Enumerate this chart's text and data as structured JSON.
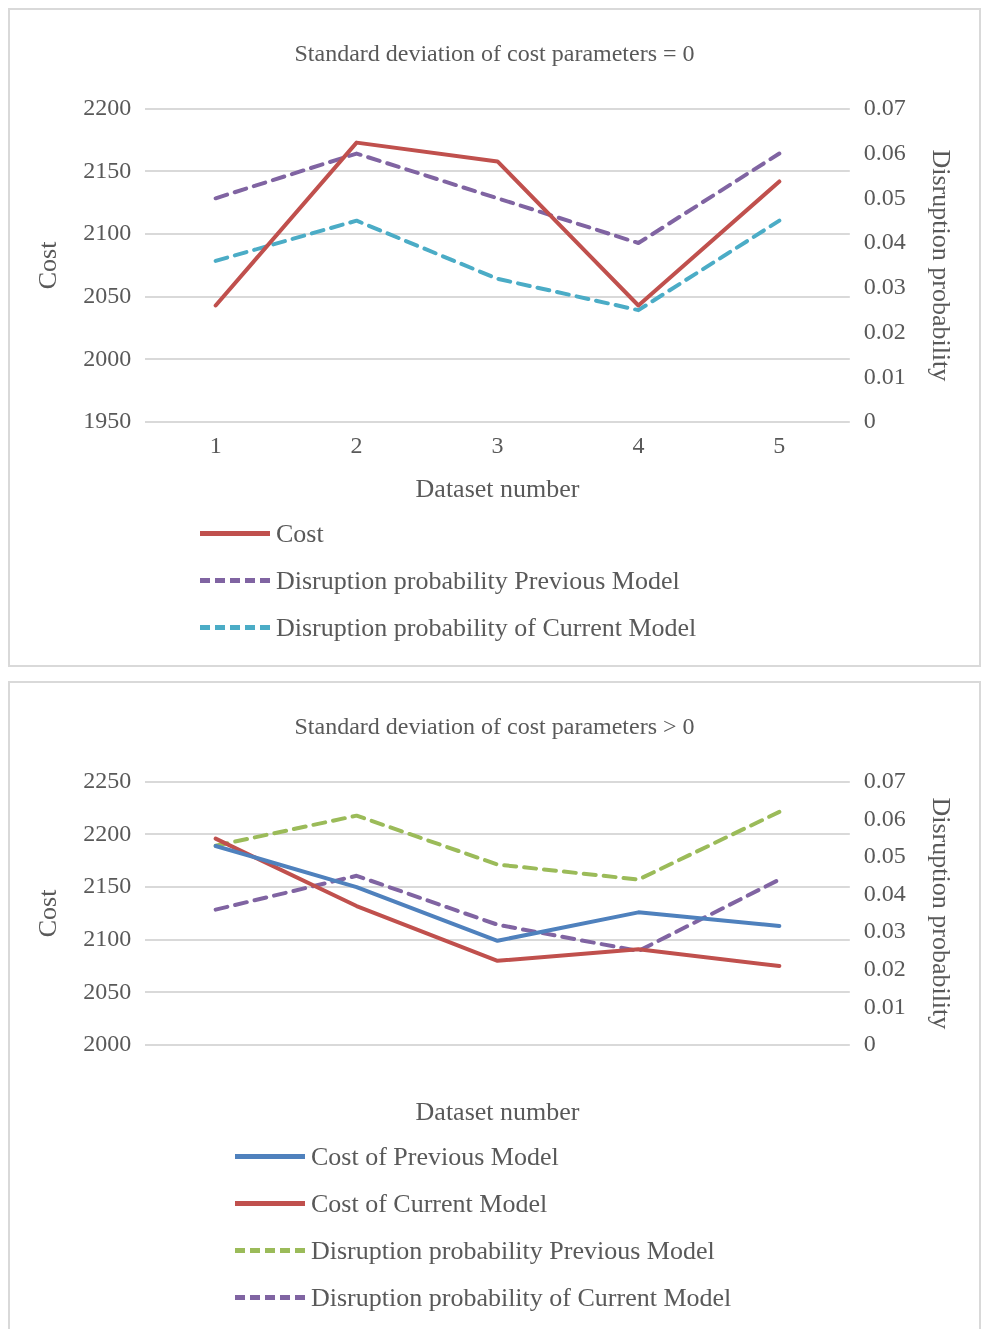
{
  "chart_data": [
    {
      "type": "line",
      "title": "Standard deviation of cost parameters = 0",
      "xlabel": "Dataset number",
      "ylabel": "Cost",
      "y2label": "Disruption probability",
      "categories": [
        "1",
        "2",
        "3",
        "4",
        "5"
      ],
      "series": [
        {
          "name": "Cost",
          "color": "#c0504d",
          "line_style": "solid",
          "values": [
            2043,
            2173,
            2158,
            2043,
            2142
          ]
        },
        {
          "name": "Disruption probability Previous Model",
          "color": "#8064a2",
          "line_style": "dashed",
          "axis": "y2",
          "values": [
            0.05,
            0.06,
            0.05,
            0.04,
            0.06
          ]
        },
        {
          "name": "Disruption probability of Current Model",
          "color": "#4bacc6",
          "line_style": "dashed",
          "axis": "y2",
          "values": [
            0.036,
            0.045,
            0.032,
            0.025,
            0.045
          ]
        }
      ],
      "ylim": [
        1950,
        2200
      ],
      "yticks": [
        1950,
        2000,
        2050,
        2100,
        2150,
        2200
      ],
      "y2lim": [
        0,
        0.07
      ],
      "y2ticks": [
        0,
        0.01,
        0.02,
        0.03,
        0.04,
        0.05,
        0.06,
        0.07
      ],
      "grid": "y",
      "legend": "bottom",
      "marker": "none"
    },
    {
      "type": "line",
      "title": "Standard deviation of cost parameters > 0",
      "xlabel": "Dataset number",
      "ylabel": "Cost",
      "y2label": "Disruption probability",
      "categories": [
        null,
        null,
        null,
        null,
        null
      ],
      "series": [
        {
          "name": "Cost of Previous Model",
          "color": "#4f81bd",
          "line_style": "solid",
          "values": [
            2189,
            2150,
            2099,
            2126,
            2113
          ]
        },
        {
          "name": "Cost of Current Model",
          "color": "#c0504d",
          "line_style": "solid",
          "values": [
            2196,
            2132,
            2080,
            2091,
            2075
          ]
        },
        {
          "name": "Disruption probability Previous Model",
          "color": "#9bbb59",
          "line_style": "dashed",
          "axis": "y2",
          "values": [
            0.053,
            0.061,
            0.048,
            0.044,
            0.062
          ]
        },
        {
          "name": "Disruption probability of Current Model",
          "color": "#8064a2",
          "line_style": "dashed",
          "axis": "y2",
          "values": [
            0.036,
            0.045,
            0.032,
            0.025,
            0.044
          ]
        }
      ],
      "ylim": [
        2000,
        2250
      ],
      "yticks": [
        2000,
        2050,
        2100,
        2150,
        2200,
        2250
      ],
      "y2lim": [
        0,
        0.07
      ],
      "y2ticks": [
        0,
        0.01,
        0.02,
        0.03,
        0.04,
        0.05,
        0.06,
        0.07
      ],
      "grid": "y",
      "legend": "bottom",
      "marker": "none"
    }
  ]
}
